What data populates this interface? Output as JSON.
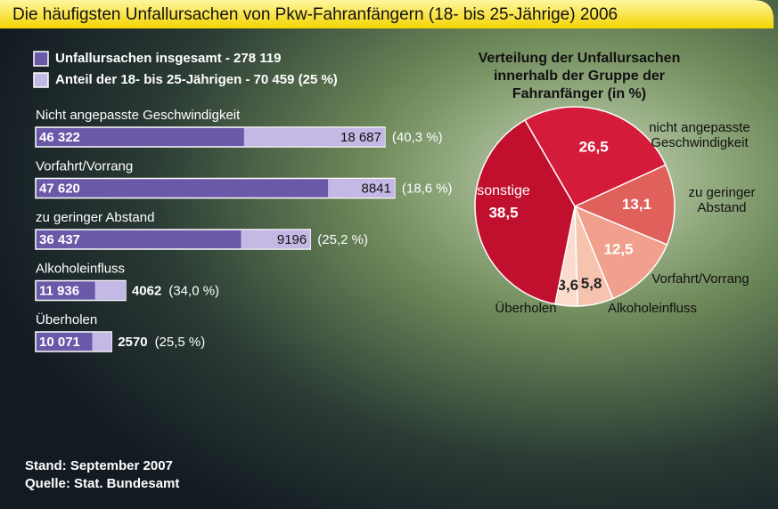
{
  "title": "Die häufigsten Unfallursachen von Pkw-Fahranfängern (18- bis 25-Jährige) 2006",
  "footnotes": [
    "Stand: September 2007",
    "Quelle: Stat. Bundesamt"
  ],
  "chart_data": [
    {
      "type": "hbar-overlap",
      "categories": [
        "Nicht angepasste Geschwindigkeit",
        "Vorfahrt/Vorrang",
        "zu geringer Abstand",
        "Alkoholeinfluss",
        "Überholen"
      ],
      "series": [
        {
          "name": "Unfallursachen insgesamt - 278 119",
          "color": "#6a58a8",
          "values": [
            46322,
            47620,
            36437,
            11936,
            10071
          ],
          "value_labels": [
            "46 322",
            "47 620",
            "36 437",
            "11 936",
            "10 071"
          ]
        },
        {
          "name": "Anteil der 18- bis 25-Jährigen - 70 459 (25 %)",
          "color": "#c4b8e4",
          "values": [
            18687,
            8841,
            9196,
            4062,
            2570
          ],
          "value_labels": [
            "18 687",
            "8841",
            "9196",
            "4062",
            "2570"
          ]
        }
      ],
      "share_labels": [
        "(40,3 %)",
        "(18,6 %)",
        "(25,2 %)",
        "(34,0 %)",
        "(25,5 %)"
      ],
      "xlim": [
        0,
        50000
      ]
    },
    {
      "type": "pie",
      "title": "Verteilung der Unfallursachen innerhalb der Gruppe der Fahranfänger (in %)",
      "categories": [
        "nicht angepasste Geschwindigkeit",
        "zu geringer Abstand",
        "Vorfahrt/Vorrang",
        "Alkoholeinfluss",
        "Überholen",
        "sonstige"
      ],
      "values": [
        26.5,
        13.1,
        12.5,
        5.8,
        3.6,
        38.5
      ],
      "value_labels": [
        "26,5",
        "13,1",
        "12,5",
        "5,8",
        "3,6",
        "38,5"
      ],
      "colors": [
        "#d41c3a",
        "#e0605c",
        "#f0a08c",
        "#f6c4ae",
        "#fbdccc",
        "#c0102e"
      ]
    }
  ]
}
